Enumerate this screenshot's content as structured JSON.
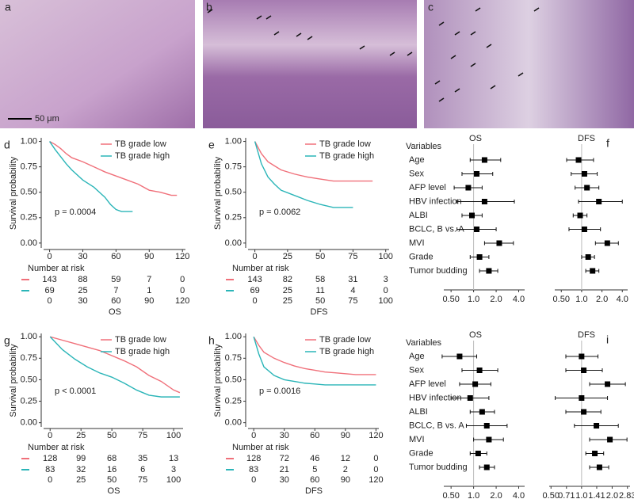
{
  "images": [
    {
      "label": "a",
      "scale_bar": "50 μm"
    },
    {
      "label": "b"
    },
    {
      "label": "c"
    }
  ],
  "chart_data": [
    {
      "panel": "d",
      "type": "line",
      "ylabel": "Survival probability",
      "xlabel": "OS",
      "annotation": "p = 0.0004",
      "legend": "top-right",
      "xlim": [
        -4,
        122
      ],
      "ylim": [
        -0.04,
        1.02
      ],
      "xticks": [
        0,
        30,
        60,
        90,
        120
      ],
      "yticks": [
        {
          "value": 0,
          "label": "0.00"
        },
        {
          "value": 0.25,
          "label": "0.25"
        },
        {
          "value": 0.5,
          "label": "0.50"
        },
        {
          "value": 0.75,
          "label": "0.75"
        },
        {
          "value": 1,
          "label": "1.00"
        }
      ],
      "series": [
        {
          "name": "TB grade low",
          "color": "#f0707a",
          "x": [
            0,
            5,
            10,
            15,
            20,
            30,
            40,
            50,
            60,
            70,
            80,
            90,
            100,
            110,
            115
          ],
          "values": [
            1.0,
            0.97,
            0.93,
            0.88,
            0.84,
            0.8,
            0.75,
            0.7,
            0.66,
            0.62,
            0.58,
            0.52,
            0.5,
            0.47,
            0.47
          ]
        },
        {
          "name": "TB grade high",
          "color": "#2bb5b8",
          "x": [
            0,
            5,
            10,
            15,
            20,
            30,
            40,
            50,
            55,
            60,
            65,
            75
          ],
          "values": [
            1.0,
            0.92,
            0.85,
            0.78,
            0.72,
            0.62,
            0.55,
            0.45,
            0.38,
            0.33,
            0.31,
            0.31
          ]
        }
      ],
      "risk_table": {
        "title": "Number at risk",
        "rows": [
          [
            143,
            88,
            59,
            7,
            0
          ],
          [
            69,
            25,
            7,
            1,
            0
          ]
        ]
      }
    },
    {
      "panel": "e",
      "type": "line",
      "ylabel": "Survival probability",
      "xlabel": "DFS",
      "annotation": "p = 0.0062",
      "legend": "top-right",
      "xlim": [
        -4,
        102
      ],
      "ylim": [
        -0.04,
        1.02
      ],
      "xticks": [
        0,
        25,
        50,
        75,
        100
      ],
      "yticks": [
        {
          "value": 0,
          "label": "0.00"
        },
        {
          "value": 0.25,
          "label": "0.25"
        },
        {
          "value": 0.5,
          "label": "0.50"
        },
        {
          "value": 0.75,
          "label": "0.75"
        },
        {
          "value": 1,
          "label": "1.00"
        }
      ],
      "series": [
        {
          "name": "TB grade low",
          "color": "#f0707a",
          "x": [
            0,
            5,
            10,
            15,
            20,
            30,
            40,
            50,
            60,
            70,
            80,
            90
          ],
          "values": [
            1.0,
            0.88,
            0.8,
            0.76,
            0.72,
            0.68,
            0.65,
            0.63,
            0.61,
            0.61,
            0.61,
            0.61
          ]
        },
        {
          "name": "TB grade high",
          "color": "#2bb5b8",
          "x": [
            0,
            5,
            10,
            15,
            20,
            30,
            40,
            50,
            60,
            70,
            75
          ],
          "values": [
            1.0,
            0.78,
            0.65,
            0.58,
            0.52,
            0.47,
            0.42,
            0.38,
            0.35,
            0.35,
            0.35
          ]
        }
      ],
      "risk_table": {
        "title": "Number at risk",
        "rows": [
          [
            143,
            82,
            58,
            31,
            3
          ],
          [
            69,
            25,
            11,
            4,
            0
          ]
        ]
      }
    },
    {
      "panel": "f",
      "type": "forest",
      "variables_title": "Variables",
      "variables": [
        "Age",
        "Sex",
        "AFP level",
        "HBV infection",
        "ALBI",
        "BCLC, B vs. A",
        "MVI",
        "Grade",
        "Tumor budding"
      ],
      "panels": [
        {
          "title": "OS",
          "log": true,
          "xlim": [
            0.4,
            4.8
          ],
          "xticks": [
            {
              "value": 0.5,
              "label": "0.50"
            },
            {
              "value": 1,
              "label": "1.0"
            },
            {
              "value": 2,
              "label": "2.0"
            },
            {
              "value": 4,
              "label": "4.0"
            }
          ],
          "estimates": [
            1.4,
            1.1,
            0.85,
            1.4,
            0.95,
            1.1,
            2.2,
            1.2,
            1.6
          ],
          "lower": [
            0.9,
            0.7,
            0.55,
            0.6,
            0.7,
            0.6,
            1.4,
            0.9,
            1.2
          ],
          "upper": [
            2.3,
            1.8,
            1.3,
            3.5,
            1.3,
            2.0,
            3.4,
            1.6,
            2.1
          ]
        },
        {
          "title": "DFS",
          "log": true,
          "xlim": [
            0.4,
            4.8
          ],
          "xticks": [
            {
              "value": 0.5,
              "label": "0.50"
            },
            {
              "value": 1,
              "label": "1.0"
            },
            {
              "value": 2,
              "label": "2.0"
            },
            {
              "value": 4,
              "label": "4.0"
            }
          ],
          "estimates": [
            0.9,
            1.1,
            1.2,
            1.8,
            0.95,
            1.1,
            2.4,
            1.25,
            1.45
          ],
          "lower": [
            0.6,
            0.7,
            0.8,
            0.9,
            0.75,
            0.65,
            1.6,
            1.0,
            1.15
          ],
          "upper": [
            1.5,
            1.7,
            1.8,
            4.0,
            1.2,
            1.9,
            3.5,
            1.55,
            1.8
          ]
        }
      ]
    },
    {
      "panel": "g",
      "type": "line",
      "ylabel": "Survival probability",
      "xlabel": "OS",
      "annotation": "p < 0.0001",
      "legend": "top-right",
      "xlim": [
        -4,
        107
      ],
      "ylim": [
        -0.04,
        1.02
      ],
      "xticks": [
        0,
        25,
        50,
        75,
        100
      ],
      "yticks": [
        {
          "value": 0,
          "label": "0.00"
        },
        {
          "value": 0.25,
          "label": "0.25"
        },
        {
          "value": 0.5,
          "label": "0.50"
        },
        {
          "value": 0.75,
          "label": "0.75"
        },
        {
          "value": 1,
          "label": "1.00"
        }
      ],
      "series": [
        {
          "name": "TB grade low",
          "color": "#f0707a",
          "x": [
            0,
            10,
            20,
            30,
            40,
            50,
            60,
            70,
            80,
            90,
            100,
            105
          ],
          "values": [
            1.0,
            0.96,
            0.92,
            0.88,
            0.84,
            0.78,
            0.72,
            0.65,
            0.55,
            0.48,
            0.38,
            0.35
          ]
        },
        {
          "name": "TB grade high",
          "color": "#2bb5b8",
          "x": [
            0,
            10,
            20,
            30,
            40,
            50,
            60,
            70,
            80,
            90,
            100,
            105
          ],
          "values": [
            1.0,
            0.85,
            0.74,
            0.65,
            0.58,
            0.53,
            0.46,
            0.38,
            0.32,
            0.3,
            0.3,
            0.3
          ]
        }
      ],
      "risk_table": {
        "title": "Number at risk",
        "rows": [
          [
            128,
            99,
            68,
            35,
            13
          ],
          [
            83,
            32,
            16,
            6,
            3
          ]
        ]
      }
    },
    {
      "panel": "h",
      "type": "line",
      "ylabel": "Survival probability",
      "xlabel": "DFS",
      "annotation": "p = 0.0016",
      "legend": "top-right",
      "xlim": [
        -4,
        122
      ],
      "ylim": [
        -0.04,
        1.02
      ],
      "xticks": [
        0,
        30,
        60,
        90,
        120
      ],
      "yticks": [
        {
          "value": 0,
          "label": "0.00"
        },
        {
          "value": 0.25,
          "label": "0.25"
        },
        {
          "value": 0.5,
          "label": "0.50"
        },
        {
          "value": 0.75,
          "label": "0.75"
        },
        {
          "value": 1,
          "label": "1.00"
        }
      ],
      "series": [
        {
          "name": "TB grade low",
          "color": "#f0707a",
          "x": [
            0,
            5,
            10,
            20,
            30,
            40,
            50,
            60,
            70,
            80,
            90,
            100,
            110,
            120
          ],
          "values": [
            1.0,
            0.9,
            0.82,
            0.75,
            0.7,
            0.66,
            0.63,
            0.61,
            0.59,
            0.58,
            0.57,
            0.56,
            0.56,
            0.56
          ]
        },
        {
          "name": "TB grade high",
          "color": "#2bb5b8",
          "x": [
            0,
            5,
            10,
            20,
            30,
            40,
            50,
            60,
            70,
            80,
            90,
            100,
            110,
            120
          ],
          "values": [
            1.0,
            0.8,
            0.65,
            0.55,
            0.5,
            0.48,
            0.46,
            0.45,
            0.44,
            0.44,
            0.44,
            0.44,
            0.44,
            0.44
          ]
        }
      ],
      "risk_table": {
        "title": "Number at risk",
        "rows": [
          [
            128,
            72,
            46,
            12,
            0
          ],
          [
            83,
            21,
            5,
            2,
            0
          ]
        ]
      }
    },
    {
      "panel": "i",
      "type": "forest",
      "variables_title": "Variables",
      "variables": [
        "Age",
        "Sex",
        "AFP level",
        "HBV infection",
        "ALBI",
        "BCLC, B vs. A",
        "MVI",
        "Grade",
        "Tumor budding"
      ],
      "panels": [
        {
          "title": "OS",
          "log": true,
          "xlim": [
            0.4,
            4.8
          ],
          "xticks": [
            {
              "value": 0.5,
              "label": "0.50"
            },
            {
              "value": 1,
              "label": "1.0"
            },
            {
              "value": 2,
              "label": "2.0"
            },
            {
              "value": 4,
              "label": "4.0"
            }
          ],
          "estimates": [
            0.65,
            1.2,
            1.05,
            0.9,
            1.3,
            1.5,
            1.6,
            1.15,
            1.5
          ],
          "lower": [
            0.38,
            0.7,
            0.65,
            0.5,
            0.9,
            0.8,
            1.0,
            0.9,
            1.2
          ],
          "upper": [
            1.1,
            2.1,
            1.7,
            1.6,
            1.9,
            2.8,
            2.5,
            1.5,
            1.9
          ]
        },
        {
          "title": "DFS",
          "log": true,
          "xlim": [
            0.48,
            3.0
          ],
          "xticks": [
            {
              "value": 0.5,
              "label": "0.50"
            },
            {
              "value": 0.71,
              "label": "0.71"
            },
            {
              "value": 1,
              "label": "1.0"
            },
            {
              "value": 1.41,
              "label": "1.41"
            },
            {
              "value": 2,
              "label": "2.0"
            },
            {
              "value": 2.83,
              "label": "2.83"
            }
          ],
          "estimates": [
            1.0,
            1.05,
            1.8,
            1.0,
            1.05,
            1.4,
            1.9,
            1.35,
            1.5
          ],
          "lower": [
            0.7,
            0.7,
            1.2,
            0.55,
            0.7,
            0.85,
            1.2,
            1.1,
            1.2
          ],
          "upper": [
            1.45,
            1.6,
            2.7,
            1.8,
            1.55,
            2.3,
            2.8,
            1.65,
            1.85
          ]
        }
      ]
    }
  ]
}
